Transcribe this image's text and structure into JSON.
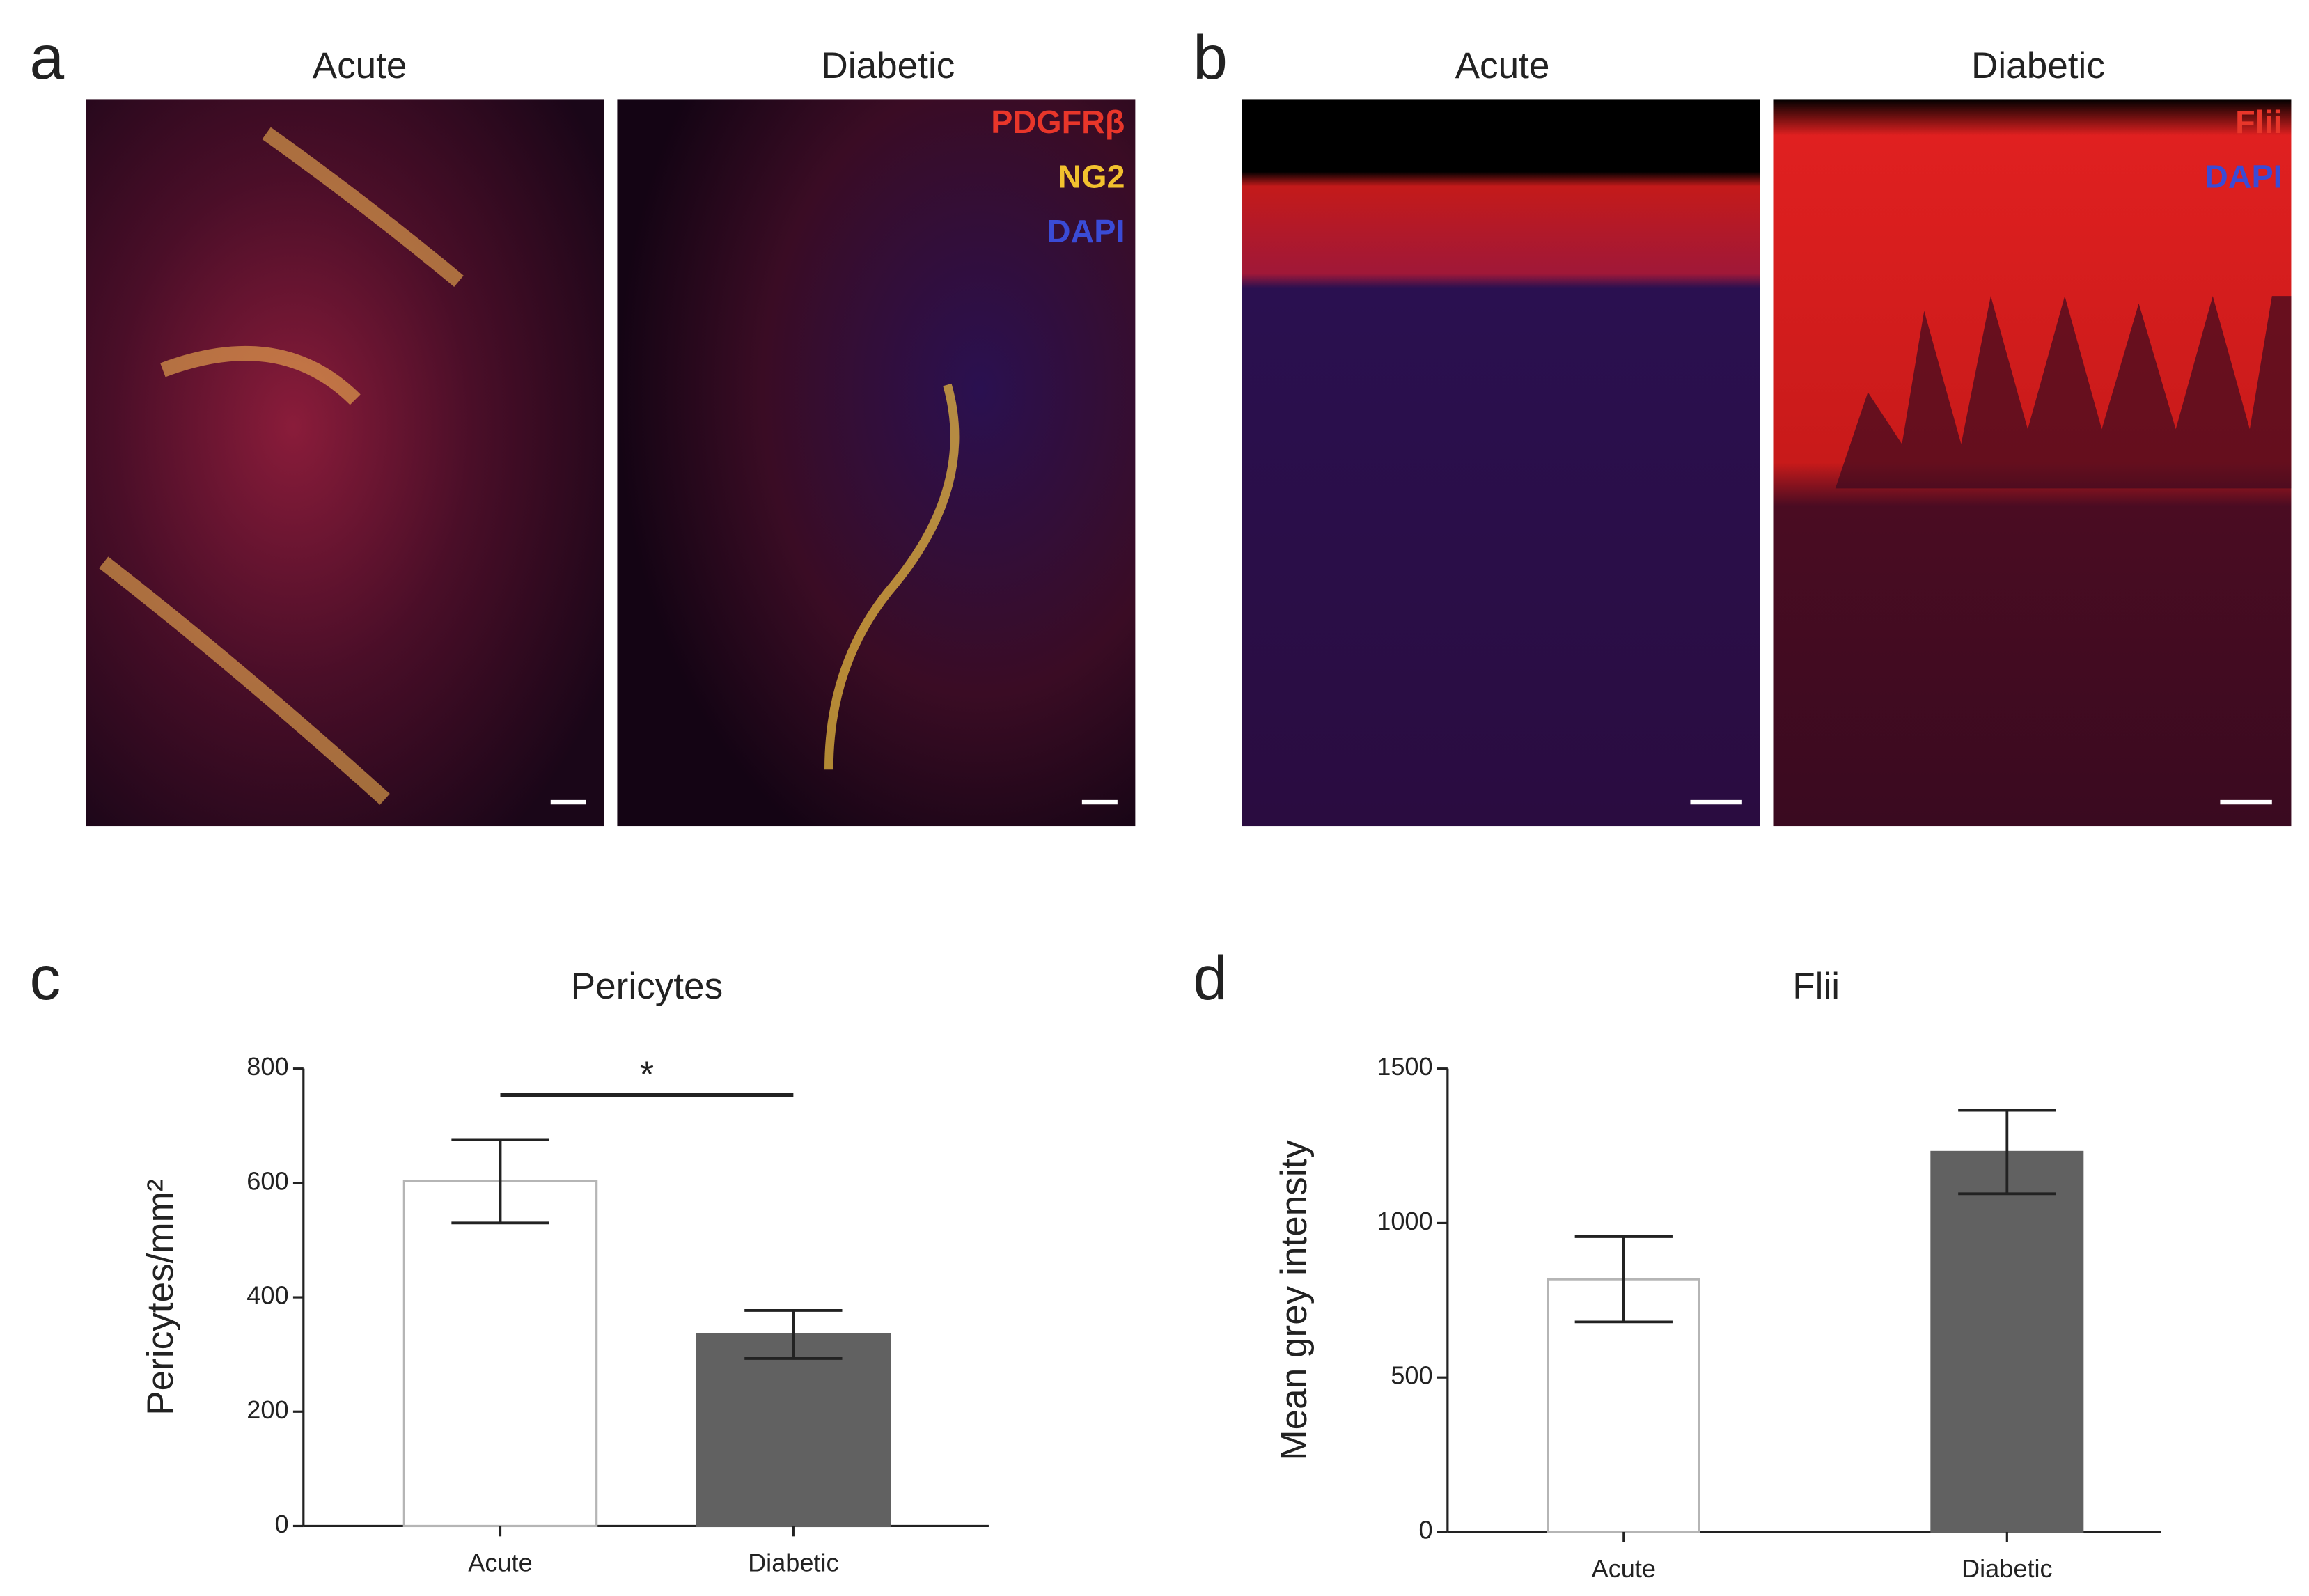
{
  "panels": [
    {
      "label": "a",
      "images": [
        {
          "title": "Acute"
        },
        {
          "title": "Diabetic"
        }
      ],
      "legend": [
        {
          "text": "PDGFRβ",
          "color": "#e8362a"
        },
        {
          "text": "NG2",
          "color": "#f2c12e"
        },
        {
          "text": "DAPI",
          "color": "#3a4bd6"
        }
      ]
    },
    {
      "label": "b",
      "images": [
        {
          "title": "Acute"
        },
        {
          "title": "Diabetic"
        }
      ],
      "legend": [
        {
          "text": "Flii",
          "color": "#e8362a"
        },
        {
          "text": "DAPI",
          "color": "#3a4bd6"
        }
      ]
    }
  ],
  "chart_data": [
    {
      "type": "bar",
      "label": "c",
      "title": "Pericytes",
      "ylabel": "Pericytes/mm²",
      "categories": [
        "Acute",
        "Diabetic"
      ],
      "values": [
        603,
        335
      ],
      "errors": [
        73,
        42
      ],
      "colors": [
        "#ffffff",
        "#616161"
      ],
      "edgecolors": [
        "#b5b5b5",
        "#616161"
      ],
      "ylim": [
        0,
        800
      ],
      "yticks": [
        0,
        200,
        400,
        600,
        800
      ],
      "significance": "*"
    },
    {
      "type": "bar",
      "label": "d",
      "title": "Flii",
      "ylabel": "Mean grey intensity",
      "categories": [
        "Acute",
        "Diabetic"
      ],
      "values": [
        818,
        1230
      ],
      "errors": [
        138,
        135
      ],
      "colors": [
        "#ffffff",
        "#616161"
      ],
      "edgecolors": [
        "#b5b5b5",
        "#616161"
      ],
      "ylim": [
        0,
        1500
      ],
      "yticks": [
        0,
        500,
        1000,
        1500
      ]
    }
  ]
}
